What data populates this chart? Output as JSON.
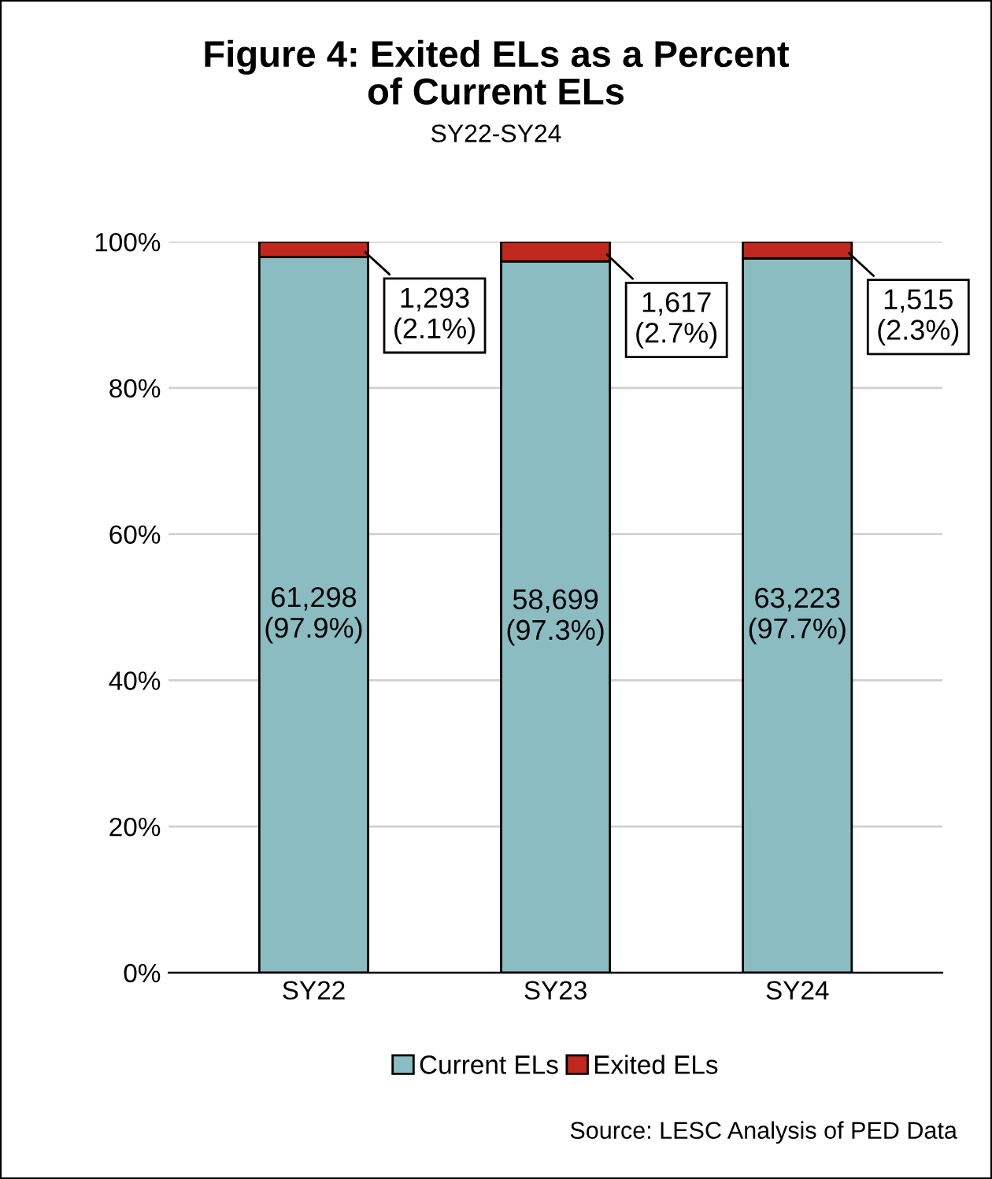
{
  "chart_data": {
    "type": "bar",
    "title": "Figure 4: Exited ELs as a Percent\nof Current ELs",
    "subtitle": "SY22-SY24",
    "categories": [
      "SY22",
      "SY23",
      "SY24"
    ],
    "stacked": true,
    "series": [
      {
        "name": "Current ELs",
        "color": "#8abcc1",
        "values": [
          97.9,
          97.3,
          97.7
        ],
        "value_labels": [
          "61,298\n(97.9%)",
          "58,699\n(97.3%)",
          "63,223\n(97.7%)"
        ]
      },
      {
        "name": "Exited ELs",
        "color": "#c0281e",
        "values": [
          2.1,
          2.7,
          2.3
        ],
        "value_labels": [
          "1,293\n(2.1%)",
          "1,617\n(2.7%)",
          "1,515\n(2.3%)"
        ]
      }
    ],
    "ylim": [
      0,
      100
    ],
    "yticks": [
      {
        "value": 0,
        "label": "0%"
      },
      {
        "value": 20,
        "label": "20%"
      },
      {
        "value": 40,
        "label": "40%"
      },
      {
        "value": 60,
        "label": "60%"
      },
      {
        "value": 80,
        "label": "80%"
      },
      {
        "value": 100,
        "label": "100%"
      }
    ],
    "grid": "y",
    "legend": "bottom",
    "annotations": [
      "Source: LESC Analysis of PED Data"
    ]
  }
}
